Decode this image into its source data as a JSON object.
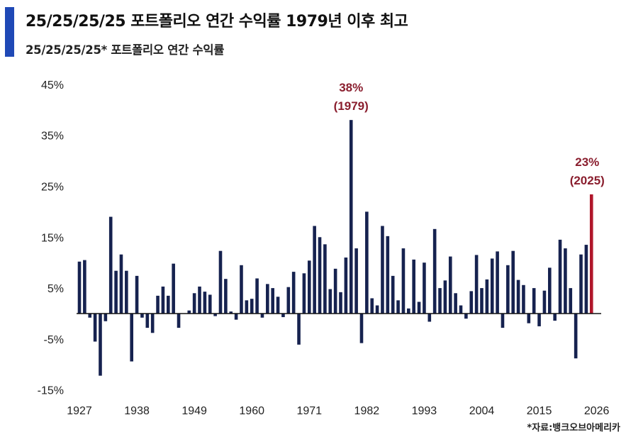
{
  "header": {
    "title": "25/25/25/25 포트폴리오 연간 수익률 1979년 이후 최고",
    "subtitle": "25/25/25/25* 포트폴리오 연간 수익률"
  },
  "source": "*자료:뱅크오브아메리카",
  "colors": {
    "bar": "#16224f",
    "highlight": "#b0162a",
    "accent": "#1f49b6",
    "annotation": "#8a1e2e"
  },
  "chart_data": {
    "type": "bar",
    "title": "25/25/25/25 포트폴리오 연간 수익률 1979년 이후 최고",
    "subtitle": "25/25/25/25* 포트폴리오 연간 수익률",
    "xlabel": "",
    "ylabel": "",
    "ylim": [
      -15,
      45
    ],
    "xlim": [
      1927,
      2026
    ],
    "y_ticks": [
      "45%",
      "35%",
      "25%",
      "15%",
      "5%",
      "-5%",
      "-15%"
    ],
    "y_tick_values": [
      45,
      35,
      25,
      15,
      5,
      -5,
      -15
    ],
    "x_ticks": [
      "1927",
      "1938",
      "1949",
      "1960",
      "1971",
      "1982",
      "1993",
      "2004",
      "2015",
      "2026"
    ],
    "grid": false,
    "start_year": 1927,
    "values": [
      10.2,
      10.5,
      -0.8,
      -5.5,
      -12.2,
      -1.5,
      19,
      8.4,
      11.6,
      8.4,
      -9.4,
      7.4,
      -0.8,
      -2.8,
      -3.8,
      3.5,
      5.3,
      3.5,
      9.8,
      -2.8,
      0,
      0.6,
      4,
      5.3,
      4.3,
      3.7,
      -0.5,
      12.3,
      6.8,
      0.4,
      -1.2,
      9.5,
      2.6,
      2.9,
      6.9,
      -0.8,
      5.8,
      5,
      3.3,
      -0.7,
      5.2,
      8.2,
      -6.1,
      7.9,
      10.4,
      17.2,
      15,
      13.6,
      4.8,
      8.8,
      4.2,
      11,
      38,
      12.8,
      -5.8,
      20,
      3,
      1.6,
      17.2,
      15.2,
      7.4,
      2.6,
      12.8,
      1,
      10.6,
      2.3,
      10,
      -1.6,
      16.6,
      5,
      6.5,
      11.2,
      4,
      1.6,
      -1,
      4.4,
      11.5,
      5,
      6.7,
      10.8,
      12.2,
      -2.8,
      9.5,
      12.3,
      6.6,
      5.6,
      -1.9,
      5,
      -2.5,
      4.5,
      9,
      -1.4,
      14.5,
      12.8,
      5,
      -8.8,
      11.6,
      13.5,
      23.4
    ],
    "highlight_year": 2025,
    "annotations": [
      {
        "year": 1979,
        "value": 38,
        "line1": "38%",
        "line2": "(1979)"
      },
      {
        "year": 2025,
        "value": 23,
        "line1": "23%",
        "line2": "(2025)"
      }
    ]
  }
}
